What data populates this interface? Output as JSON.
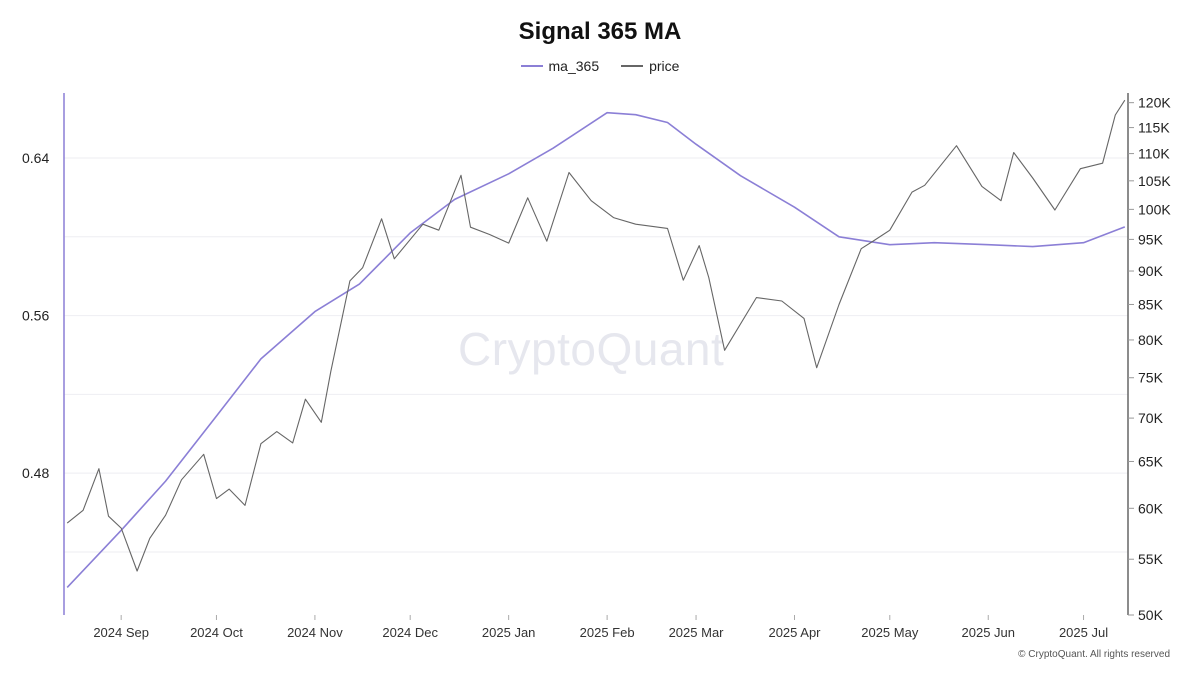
{
  "chart_data": {
    "type": "line",
    "title": "Signal 365 MA",
    "legend_position": "top-center",
    "grid": "horizontal",
    "x_range": [
      "2024-08-14",
      "2025-07-15"
    ],
    "x_ticks": [
      {
        "date": "2024-09-01",
        "label": "2024 Sep"
      },
      {
        "date": "2024-10-01",
        "label": "2024 Oct"
      },
      {
        "date": "2024-11-01",
        "label": "2024 Nov"
      },
      {
        "date": "2024-12-01",
        "label": "2024 Dec"
      },
      {
        "date": "2025-01-01",
        "label": "2025 Jan"
      },
      {
        "date": "2025-02-01",
        "label": "2025 Feb"
      },
      {
        "date": "2025-03-01",
        "label": "2025 Mar"
      },
      {
        "date": "2025-04-01",
        "label": "2025 Apr"
      },
      {
        "date": "2025-05-01",
        "label": "2025 May"
      },
      {
        "date": "2025-06-01",
        "label": "2025 Jun"
      },
      {
        "date": "2025-07-01",
        "label": "2025 Jul"
      }
    ],
    "y_left": {
      "ticks": [
        {
          "value": 0.48,
          "label": "0.48"
        },
        {
          "value": 0.56,
          "label": "0.56"
        },
        {
          "value": 0.64,
          "label": "0.64"
        }
      ],
      "range": [
        0.408,
        0.673
      ]
    },
    "y_right": {
      "scale": "log",
      "range": [
        50000,
        122000
      ],
      "ticks": [
        {
          "value": 50000,
          "label": "50K"
        },
        {
          "value": 55000,
          "label": "55K"
        },
        {
          "value": 60000,
          "label": "60K"
        },
        {
          "value": 65000,
          "label": "65K"
        },
        {
          "value": 70000,
          "label": "70K"
        },
        {
          "value": 75000,
          "label": "75K"
        },
        {
          "value": 80000,
          "label": "80K"
        },
        {
          "value": 85000,
          "label": "85K"
        },
        {
          "value": 90000,
          "label": "90K"
        },
        {
          "value": 95000,
          "label": "95K"
        },
        {
          "value": 100000,
          "label": "100K"
        },
        {
          "value": 105000,
          "label": "105K"
        },
        {
          "value": 110000,
          "label": "110K"
        },
        {
          "value": 115000,
          "label": "115K"
        },
        {
          "value": 120000,
          "label": "120K"
        }
      ]
    },
    "series": [
      {
        "name": "ma_365",
        "axis": "left",
        "color": "#8b7fd6",
        "points": [
          [
            "2024-08-15",
            0.422
          ],
          [
            "2024-09-01",
            0.451
          ],
          [
            "2024-09-15",
            0.476
          ],
          [
            "2024-10-01",
            0.509
          ],
          [
            "2024-10-15",
            0.538
          ],
          [
            "2024-11-01",
            0.562
          ],
          [
            "2024-11-15",
            0.576
          ],
          [
            "2024-12-01",
            0.602
          ],
          [
            "2024-12-15",
            0.619
          ],
          [
            "2025-01-01",
            0.632
          ],
          [
            "2025-01-15",
            0.645
          ],
          [
            "2025-02-01",
            0.663
          ],
          [
            "2025-02-10",
            0.662
          ],
          [
            "2025-02-20",
            0.658
          ],
          [
            "2025-03-01",
            0.647
          ],
          [
            "2025-03-15",
            0.631
          ],
          [
            "2025-04-01",
            0.615
          ],
          [
            "2025-04-15",
            0.6
          ],
          [
            "2025-05-01",
            0.596
          ],
          [
            "2025-05-15",
            0.597
          ],
          [
            "2025-06-01",
            0.596
          ],
          [
            "2025-06-15",
            0.595
          ],
          [
            "2025-07-01",
            0.597
          ],
          [
            "2025-07-14",
            0.605
          ]
        ]
      },
      {
        "name": "price",
        "axis": "right",
        "color": "#666666",
        "points": [
          [
            "2024-08-15",
            58500
          ],
          [
            "2024-08-20",
            59800
          ],
          [
            "2024-08-25",
            64200
          ],
          [
            "2024-08-28",
            59200
          ],
          [
            "2024-09-01",
            58000
          ],
          [
            "2024-09-06",
            53900
          ],
          [
            "2024-09-10",
            57000
          ],
          [
            "2024-09-15",
            59300
          ],
          [
            "2024-09-20",
            63000
          ],
          [
            "2024-09-27",
            65800
          ],
          [
            "2024-10-01",
            61000
          ],
          [
            "2024-10-05",
            62000
          ],
          [
            "2024-10-10",
            60300
          ],
          [
            "2024-10-15",
            67000
          ],
          [
            "2024-10-20",
            68400
          ],
          [
            "2024-10-25",
            67100
          ],
          [
            "2024-10-29",
            72300
          ],
          [
            "2024-11-03",
            69500
          ],
          [
            "2024-11-06",
            75800
          ],
          [
            "2024-11-12",
            88500
          ],
          [
            "2024-11-16",
            90500
          ],
          [
            "2024-11-22",
            98400
          ],
          [
            "2024-11-26",
            91900
          ],
          [
            "2024-12-05",
            97500
          ],
          [
            "2024-12-10",
            96500
          ],
          [
            "2024-12-17",
            106000
          ],
          [
            "2024-12-20",
            97000
          ],
          [
            "2024-12-26",
            95800
          ],
          [
            "2025-01-01",
            94400
          ],
          [
            "2025-01-07",
            102000
          ],
          [
            "2025-01-13",
            94700
          ],
          [
            "2025-01-20",
            106500
          ],
          [
            "2025-01-27",
            101500
          ],
          [
            "2025-02-03",
            98600
          ],
          [
            "2025-02-10",
            97500
          ],
          [
            "2025-02-20",
            96800
          ],
          [
            "2025-02-25",
            88600
          ],
          [
            "2025-03-02",
            94000
          ],
          [
            "2025-03-05",
            89000
          ],
          [
            "2025-03-10",
            78600
          ],
          [
            "2025-03-20",
            86000
          ],
          [
            "2025-03-28",
            85500
          ],
          [
            "2025-04-04",
            83000
          ],
          [
            "2025-04-08",
            76300
          ],
          [
            "2025-04-15",
            85000
          ],
          [
            "2025-04-22",
            93500
          ],
          [
            "2025-04-26",
            94800
          ],
          [
            "2025-05-01",
            96500
          ],
          [
            "2025-05-08",
            103000
          ],
          [
            "2025-05-12",
            104200
          ],
          [
            "2025-05-22",
            111500
          ],
          [
            "2025-05-30",
            104000
          ],
          [
            "2025-06-05",
            101500
          ],
          [
            "2025-06-09",
            110200
          ],
          [
            "2025-06-15",
            105500
          ],
          [
            "2025-06-22",
            99900
          ],
          [
            "2025-06-30",
            107200
          ],
          [
            "2025-07-07",
            108200
          ],
          [
            "2025-07-11",
            117500
          ],
          [
            "2025-07-14",
            120500
          ]
        ]
      }
    ]
  },
  "watermark": "CryptoQuant",
  "copyright": "© CryptoQuant. All rights reserved"
}
